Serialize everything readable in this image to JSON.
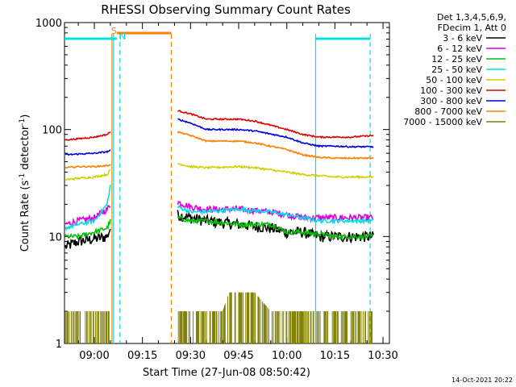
{
  "chart_data": {
    "type": "line",
    "title": "RHESSI Observing Summary Count Rates",
    "xlabel": "Start Time (27-Jun-08 08:50:42)",
    "ylabel_main": "Count Rate (s",
    "ylabel_sup1": "-1",
    "ylabel_mid": " detector",
    "ylabel_sup2": "-1",
    "ylabel_end": ")",
    "y_scale": "log",
    "ylim": [
      1,
      1000
    ],
    "xlim": [
      "08:50:42",
      "10:32:00"
    ],
    "x_ticks": [
      "09:00",
      "09:15",
      "09:30",
      "09:45",
      "10:00",
      "10:15",
      "10:30"
    ],
    "y_ticks": [
      "1",
      "10",
      "100",
      "1000"
    ],
    "legend": {
      "placement": "right",
      "header": [
        "Det 1,3,4,5,6,9,",
        "FDecim 1, Att 0"
      ],
      "entries": [
        {
          "label": "3 - 6 keV",
          "color": "#000000"
        },
        {
          "label": "6 - 12 keV",
          "color": "#e000e0"
        },
        {
          "label": "12 - 25 keV",
          "color": "#00c000"
        },
        {
          "label": "25 - 50 keV",
          "color": "#00e0e0"
        },
        {
          "label": "50 - 100 keV",
          "color": "#d0d000"
        },
        {
          "label": "100 - 300 keV",
          "color": "#e00000"
        },
        {
          "label": "300 - 800 keV",
          "color": "#0000e0"
        },
        {
          "label": "800 - 7000 keV",
          "color": "#ff8000"
        },
        {
          "label": "7000 - 15000 keV",
          "color": "#808000"
        }
      ]
    },
    "time_gap": [
      "09:05",
      "09:26"
    ],
    "series": [
      {
        "name": "3 - 6 keV",
        "color": "#000000",
        "noise": 0.12,
        "x": [
          "08:51",
          "08:55",
          "09:00",
          "09:04",
          "09:05",
          "09:26",
          "09:30",
          "09:35",
          "09:45",
          "09:55",
          "10:00",
          "10:05",
          "10:10",
          "10:15",
          "10:20",
          "10:27"
        ],
        "values": [
          8,
          9,
          9.5,
          10,
          12,
          16,
          15,
          14,
          13,
          12,
          11,
          11,
          10,
          10,
          10,
          10
        ]
      },
      {
        "name": "6 - 12 keV",
        "color": "#e000e0",
        "noise": 0.07,
        "x": [
          "08:51",
          "08:55",
          "09:00",
          "09:04",
          "09:05",
          "09:26",
          "09:30",
          "09:35",
          "09:45",
          "09:55",
          "10:00",
          "10:05",
          "10:10",
          "10:15",
          "10:20",
          "10:27"
        ],
        "values": [
          13,
          14,
          15,
          18,
          20,
          21,
          19,
          18,
          18,
          17,
          16,
          15,
          15,
          15,
          15,
          15
        ]
      },
      {
        "name": "12 - 25 keV",
        "color": "#00c000",
        "noise": 0.05,
        "x": [
          "08:51",
          "08:55",
          "09:00",
          "09:04",
          "09:05",
          "09:26",
          "09:30",
          "09:35",
          "09:45",
          "09:55",
          "10:00",
          "10:05",
          "10:10",
          "10:15",
          "10:20",
          "10:27"
        ],
        "values": [
          10,
          10,
          11,
          12,
          14,
          15,
          14,
          14,
          13,
          13,
          11,
          11,
          10.5,
          10,
          10,
          10
        ]
      },
      {
        "name": "25 - 50 keV",
        "color": "#00e0e0",
        "noise": 0.04,
        "x": [
          "08:51",
          "08:55",
          "09:00",
          "09:04",
          "09:05",
          "09:26",
          "09:30",
          "09:35",
          "09:45",
          "09:55",
          "10:00",
          "10:05",
          "10:10",
          "10:15",
          "10:20",
          "10:27"
        ],
        "values": [
          12,
          13,
          14,
          20,
          30,
          19,
          17,
          17,
          18,
          17,
          16,
          15,
          14,
          14,
          14,
          14
        ]
      },
      {
        "name": "50 - 100 keV",
        "color": "#d0d000",
        "noise": 0.02,
        "x": [
          "08:51",
          "08:55",
          "09:00",
          "09:04",
          "09:05",
          "09:26",
          "09:30",
          "09:35",
          "09:45",
          "09:50",
          "10:00",
          "10:05",
          "10:10",
          "10:15",
          "10:20",
          "10:27"
        ],
        "values": [
          34,
          35,
          36,
          38,
          42,
          48,
          45,
          44,
          45,
          44,
          40,
          38,
          37,
          36,
          36,
          36
        ]
      },
      {
        "name": "100 - 300 keV",
        "color": "#e00000",
        "noise": 0.015,
        "x": [
          "08:51",
          "08:55",
          "09:00",
          "09:04",
          "09:05",
          "09:26",
          "09:30",
          "09:35",
          "09:45",
          "09:50",
          "10:00",
          "10:05",
          "10:10",
          "10:15",
          "10:20",
          "10:27"
        ],
        "values": [
          80,
          82,
          85,
          90,
          95,
          150,
          140,
          125,
          125,
          120,
          100,
          90,
          85,
          85,
          85,
          88
        ]
      },
      {
        "name": "300 - 800 keV",
        "color": "#0000e0",
        "noise": 0.015,
        "x": [
          "08:51",
          "08:55",
          "09:00",
          "09:04",
          "09:05",
          "09:26",
          "09:30",
          "09:35",
          "09:45",
          "09:50",
          "10:00",
          "10:05",
          "10:10",
          "10:15",
          "10:20",
          "10:27"
        ],
        "values": [
          58,
          59,
          60,
          62,
          64,
          125,
          115,
          100,
          100,
          97,
          85,
          75,
          70,
          70,
          69,
          69
        ]
      },
      {
        "name": "800 - 7000 keV",
        "color": "#ff8000",
        "noise": 0.015,
        "x": [
          "08:51",
          "08:55",
          "09:00",
          "09:04",
          "09:05",
          "09:26",
          "09:30",
          "09:35",
          "09:45",
          "09:50",
          "10:00",
          "10:05",
          "10:10",
          "10:15",
          "10:20",
          "10:27"
        ],
        "values": [
          44,
          45,
          45,
          46,
          47,
          95,
          88,
          78,
          78,
          75,
          65,
          58,
          55,
          54,
          54,
          54
        ]
      },
      {
        "name": "7000 - 15000 keV",
        "color": "#808000",
        "noise": 0,
        "x": [
          "08:51",
          "09:05",
          "09:26",
          "09:40",
          "09:42",
          "09:50",
          "09:55",
          "10:27"
        ],
        "values": [
          2,
          2,
          2,
          2,
          3,
          3,
          2,
          2
        ]
      }
    ],
    "flags": [
      {
        "label": "S",
        "color": "#ff8000",
        "start": "09:07",
        "end": "09:24"
      },
      {
        "label": "N",
        "color": "#00e0e0",
        "start": "08:50:42",
        "end": "09:07"
      },
      {
        "label": "",
        "color": "#00e0e0",
        "start": "10:09",
        "end": "10:26"
      }
    ],
    "markers": [
      {
        "time": "09:06",
        "color": "#00e0e0",
        "dashed": false
      },
      {
        "time": "09:05:30",
        "color": "#ff8000",
        "dashed": false
      },
      {
        "time": "09:08",
        "color": "#00e0e0",
        "dashed": true
      },
      {
        "time": "09:24",
        "color": "#ff8000",
        "dashed": true
      },
      {
        "time": "10:09",
        "color": "#00e0e0",
        "dashed": false
      },
      {
        "time": "10:26",
        "color": "#00e0e0",
        "dashed": true
      }
    ]
  },
  "footer_date": "14-Oct-2021 20:22"
}
